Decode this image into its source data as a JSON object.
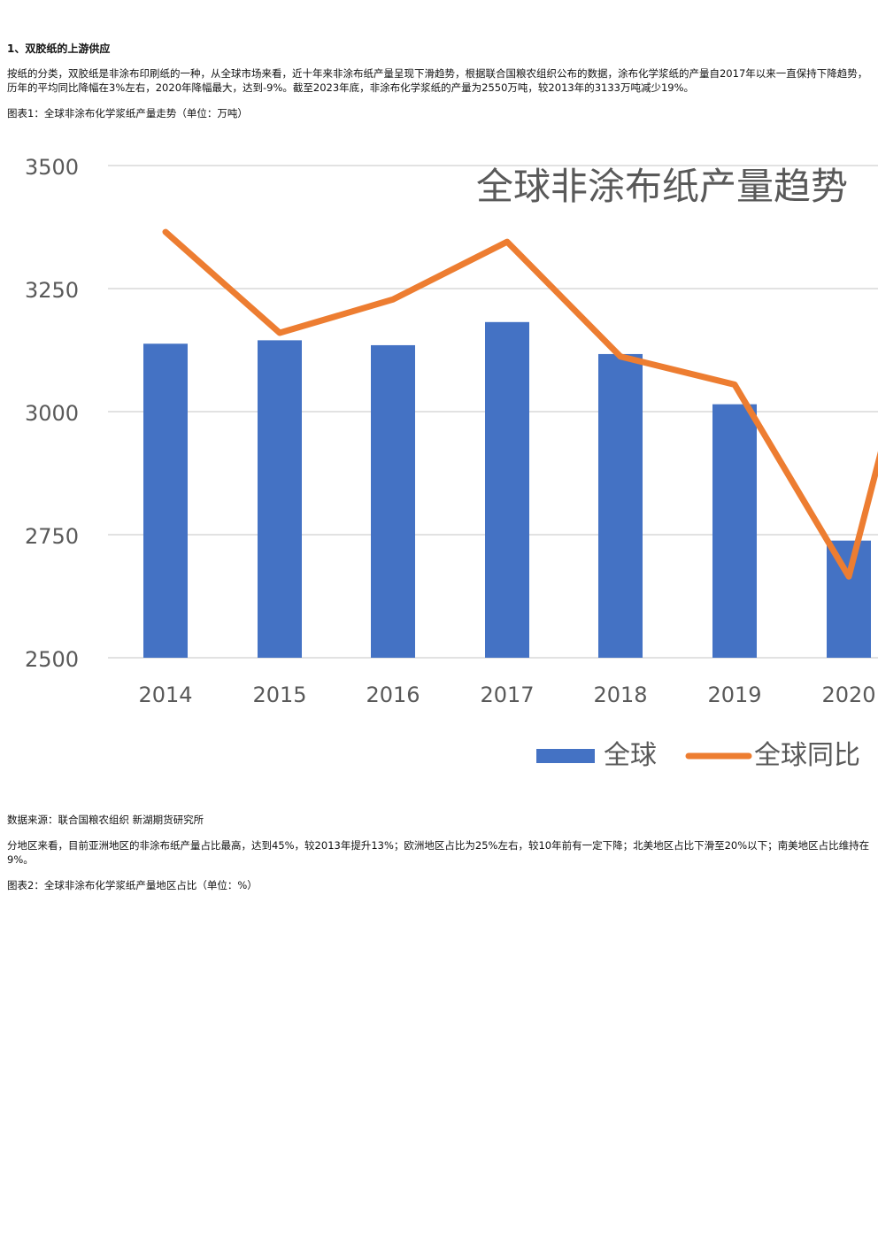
{
  "document": {
    "section_heading": "1、双胶纸的上游供应",
    "paragraph_1": "按纸的分类，双胶纸是非涂布印刷纸的一种，从全球市场来看，近十年来非涂布纸产量呈现下滑趋势，根据联合国粮农组织公布的数据，涂布化学浆纸的产量自2017年以来一直保持下降趋势，历年的平均同比降幅在3%左右，2020年降幅最大，达到-9%。截至2023年底，非涂布化学浆纸的产量为2550万吨，较2013年的3133万吨减少19%。",
    "figure_1_caption": "图表1：全球非涂布化学浆纸产量走势（单位：万吨）",
    "source": "数据来源：联合国粮农组织 新湖期货研究所",
    "paragraph_2": "分地区来看，目前亚洲地区的非涂布纸产量占比最高，达到45%，较2013年提升13%；欧洲地区占比为25%左右，较10年前有一定下降；北美地区占比下滑至20%以下；南美地区占比维持在9%。",
    "figure_2_caption": "图表2：全球非涂布化学浆纸产量地区占比（单位：%）"
  },
  "chart_data": {
    "type": "bar",
    "title": "全球非涂布纸产量趋势",
    "categories": [
      "2014",
      "2015",
      "2016",
      "2017",
      "2018",
      "2019",
      "2020"
    ],
    "ylim": [
      2500,
      3500
    ],
    "yticks": [
      "3500",
      "3250",
      "3000",
      "2750",
      "2500"
    ],
    "series": [
      {
        "name": "全球",
        "type": "bar",
        "color": "#4472C4",
        "values": [
          3138,
          3145,
          3135,
          3182,
          3117,
          3015,
          2738
        ]
      },
      {
        "name": "全球同比",
        "type": "line",
        "color": "#ED7D31",
        "values": [
          3365,
          3160,
          3228,
          3345,
          3112,
          3055,
          2665
        ]
      }
    ],
    "grid": true,
    "legend": "bottom-right"
  }
}
